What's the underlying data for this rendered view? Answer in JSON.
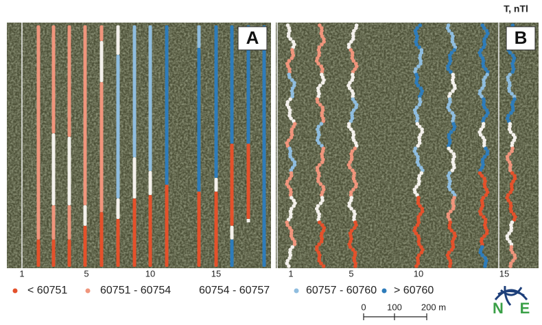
{
  "header": {
    "unit": "T, nTl"
  },
  "panels": [
    {
      "label": "A",
      "axis_labels": [
        "1",
        "5",
        "10",
        "15"
      ]
    },
    {
      "label": "B",
      "axis_labels": [
        "1",
        "5",
        "10",
        "15"
      ]
    }
  ],
  "legend": [
    {
      "label": "< 60751",
      "color": "#e4512b"
    },
    {
      "label": "60751 - 60754",
      "color": "#f0957c"
    },
    {
      "label": "60754 - 60757",
      "color": null
    },
    {
      "label": "60757 - 60760",
      "color": "#8fbddf"
    },
    {
      "label": "> 60760",
      "color": "#2e7cba"
    }
  ],
  "scale_bar": {
    "ticks": [
      "0",
      "100",
      "200 m"
    ]
  },
  "logo": {
    "letters": [
      "N",
      "E"
    ]
  }
}
